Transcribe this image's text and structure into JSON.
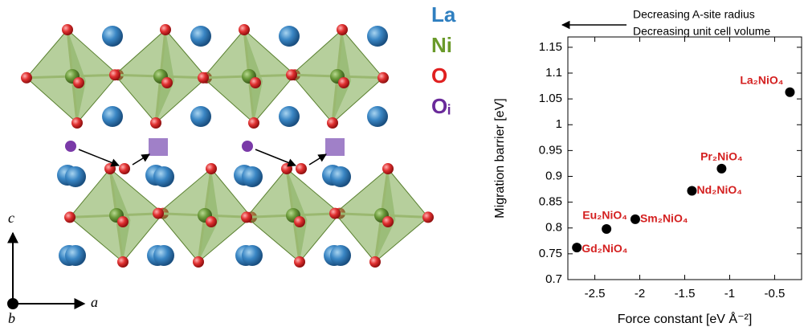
{
  "structure": {
    "legend": [
      "La",
      "Ni",
      "O",
      "Oᵢ"
    ],
    "axes": [
      "c",
      "a",
      "b"
    ]
  },
  "chart_data": {
    "type": "scatter",
    "annotation": [
      "Decreasing A-site radius",
      "Decreasing unit cell volume"
    ],
    "xlabel": "Force constant [eV Å⁻²]",
    "ylabel": "Migration barrier [eV]",
    "x": [
      -0.33,
      -1.09,
      -1.42,
      -2.05,
      -2.37,
      -2.7
    ],
    "values": [
      1.063,
      0.915,
      0.872,
      0.817,
      0.798,
      0.762
    ],
    "point_labels": [
      "La₂NiO₄",
      "Pr₂NiO₄",
      "Nd₂NiO₄",
      "Sm₂NiO₄",
      "Eu₂NiO₄",
      "Gd₂NiO₄"
    ],
    "color": "#000000",
    "label_color": "#d42020",
    "xlim": [
      -2.8,
      -0.2
    ],
    "xticks": [
      -2.5,
      -2,
      -1.5,
      -1,
      -0.5
    ],
    "ylim": [
      0.7,
      1.17
    ],
    "yticks": [
      0.7,
      0.75,
      0.8,
      0.85,
      0.9,
      0.95,
      1,
      1.05,
      1.1,
      1.15
    ]
  }
}
